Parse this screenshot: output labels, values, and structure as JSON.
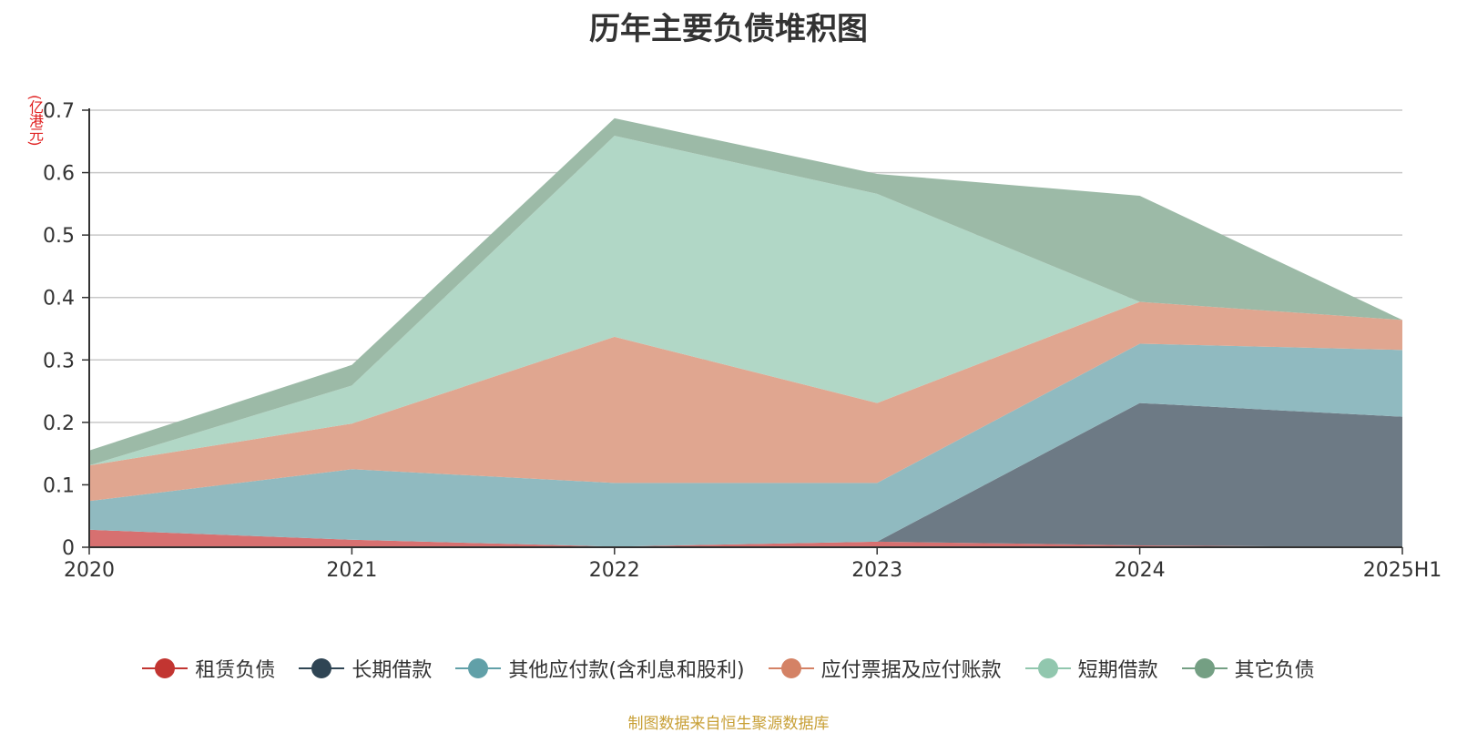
{
  "chart_data": {
    "type": "area",
    "stacked": true,
    "title": "历年主要负债堆积图",
    "unit": "(亿港元)",
    "x": [
      "2020",
      "2021",
      "2022",
      "2023",
      "2024",
      "2025H1"
    ],
    "yticks": [
      "0",
      "0.1",
      "0.2",
      "0.3",
      "0.4",
      "0.5",
      "0.6",
      "0.7"
    ],
    "ylim": [
      0,
      0.7
    ],
    "grid": true,
    "legend_position": "bottom",
    "series": [
      {
        "name": "租赁负债",
        "color": "#c23531",
        "fill": "#d77070",
        "values": [
          0.028,
          0.012,
          0.001,
          0.009,
          0.003,
          0.0
        ]
      },
      {
        "name": "长期借款",
        "color": "#2f4554",
        "fill": "#6d7a85",
        "values": [
          0.0,
          0.0,
          0.0,
          0.0,
          0.228,
          0.209
        ]
      },
      {
        "name": "其他应付款(含利息和股利)",
        "color": "#61a0a8",
        "fill": "#90bac0",
        "values": [
          0.046,
          0.113,
          0.102,
          0.094,
          0.095,
          0.107
        ]
      },
      {
        "name": "应付票据及应付账款",
        "color": "#d48265",
        "fill": "#e0a690",
        "values": [
          0.057,
          0.073,
          0.234,
          0.128,
          0.067,
          0.048
        ]
      },
      {
        "name": "短期借款",
        "color": "#91c7ae",
        "fill": "#b1d7c6",
        "values": [
          0.0,
          0.061,
          0.322,
          0.335,
          0.0,
          0.0
        ]
      },
      {
        "name": "其它负债",
        "color": "#749f83",
        "fill": "#9cbaa7",
        "values": [
          0.024,
          0.033,
          0.028,
          0.032,
          0.17,
          0.0
        ]
      }
    ]
  },
  "source_text": "制图数据来自恒生聚源数据库"
}
